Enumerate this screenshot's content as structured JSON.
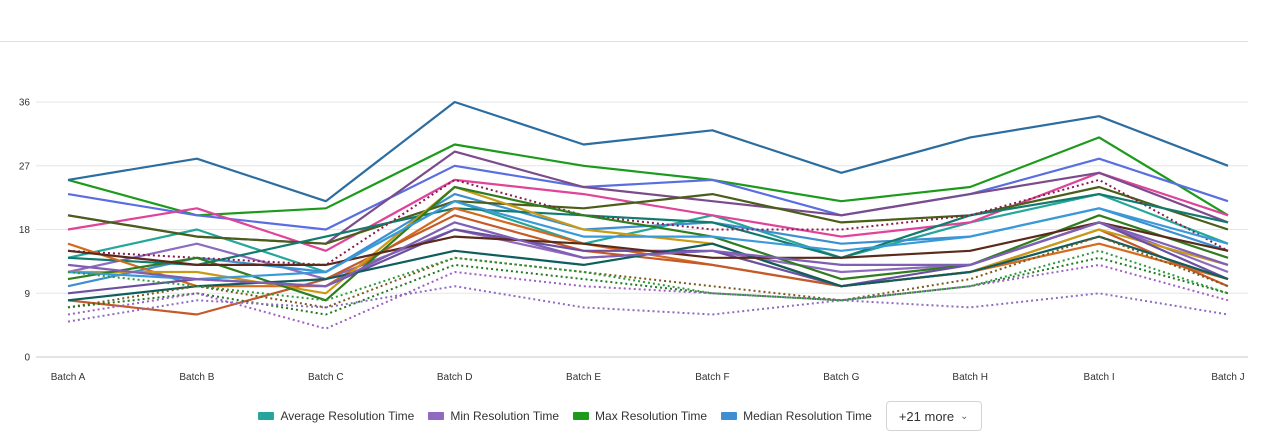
{
  "chart_data": {
    "type": "line",
    "categories": [
      "Batch A",
      "Batch B",
      "Batch C",
      "Batch D",
      "Batch E",
      "Batch F",
      "Batch G",
      "Batch H",
      "Batch I",
      "Batch J"
    ],
    "ylim": [
      0,
      36
    ],
    "yticks": [
      0,
      9,
      18,
      27,
      36
    ],
    "grid": true,
    "legend_position": "bottom",
    "series": [
      {
        "name": "Average Resolution Time",
        "color": "#26a69a",
        "values": [
          14,
          18,
          12,
          22,
          16,
          20,
          14,
          19,
          23,
          16
        ]
      },
      {
        "name": "Min Resolution Time",
        "color": "#8e6bbf",
        "values": [
          12,
          16,
          11,
          18,
          14,
          15,
          12,
          13,
          19,
          12
        ]
      },
      {
        "name": "Max Resolution Time",
        "color": "#1b9a1b",
        "values": [
          25,
          20,
          21,
          30,
          27,
          25,
          22,
          24,
          31,
          20
        ]
      },
      {
        "name": "Median Resolution Time",
        "color": "#3d8fd1",
        "values": [
          10,
          14,
          12,
          23,
          18,
          19,
          16,
          17,
          21,
          15
        ]
      },
      {
        "values": [
          25,
          28,
          22,
          36,
          30,
          32,
          26,
          31,
          34,
          27
        ],
        "color": "#2c6da0"
      },
      {
        "values": [
          23,
          20,
          18,
          27,
          24,
          25,
          20,
          23,
          28,
          22
        ],
        "color": "#5b6ee1"
      },
      {
        "values": [
          18,
          21,
          15,
          25,
          23,
          20,
          17,
          19,
          26,
          20
        ],
        "color": "#e0439a"
      },
      {
        "values": [
          20,
          17,
          16,
          29,
          24,
          22,
          20,
          23,
          26,
          19
        ],
        "color": "#7a4c8c"
      },
      {
        "values": [
          20,
          17,
          16,
          22,
          21,
          23,
          19,
          20,
          24,
          18
        ],
        "color": "#4a5e1a"
      },
      {
        "values": [
          14,
          13,
          17,
          21,
          20,
          19,
          14,
          20,
          23,
          19
        ],
        "color": "#127a6e"
      },
      {
        "values": [
          15,
          14,
          13,
          25,
          20,
          18,
          18,
          20,
          25,
          15
        ],
        "color": "#8b1a4a",
        "dashed": true
      },
      {
        "values": [
          16,
          10,
          10,
          21,
          16,
          13,
          10,
          12,
          16,
          11
        ],
        "color": "#d46a1f"
      },
      {
        "values": [
          8,
          6,
          11,
          20,
          15,
          13,
          10,
          12,
          18,
          10
        ],
        "color": "#c45a2a"
      },
      {
        "values": [
          12,
          12,
          9,
          24,
          18,
          16,
          10,
          12,
          18,
          13
        ],
        "color": "#c99a16"
      },
      {
        "values": [
          11,
          14,
          8,
          24,
          20,
          17,
          11,
          13,
          20,
          14
        ],
        "color": "#2f7d1f"
      },
      {
        "values": [
          9,
          11,
          10,
          18,
          15,
          15,
          10,
          13,
          19,
          11
        ],
        "color": "#6b4fa0"
      },
      {
        "values": [
          8,
          10,
          11,
          15,
          13,
          16,
          10,
          12,
          17,
          11
        ],
        "color": "#0f5d5d"
      },
      {
        "values": [
          15,
          13,
          13,
          17,
          16,
          14,
          14,
          15,
          19,
          15
        ],
        "color": "#5a2a1a"
      },
      {
        "values": [
          12,
          11,
          12,
          22,
          17,
          17,
          15,
          17,
          21,
          16
        ],
        "color": "#3a9ad9"
      },
      {
        "values": [
          13,
          11,
          10,
          19,
          14,
          15,
          13,
          13,
          19,
          13
        ],
        "color": "#7f5fb4"
      },
      {
        "values": [
          7,
          10,
          7,
          14,
          12,
          10,
          8,
          11,
          17,
          10
        ],
        "color": "#7a5a1a",
        "dashed": true
      },
      {
        "values": [
          7,
          9,
          6,
          13,
          11,
          9,
          8,
          10,
          14,
          9
        ],
        "color": "#1f7a1f",
        "dashed": true
      },
      {
        "values": [
          6,
          9,
          4,
          12,
          10,
          9,
          8,
          10,
          13,
          8
        ],
        "color": "#9e5fc4",
        "dashed": true
      },
      {
        "values": [
          5,
          8,
          7,
          10,
          7,
          6,
          8,
          7,
          9,
          6
        ],
        "color": "#8e6bbf",
        "dashed": true
      },
      {
        "values": [
          12,
          10,
          8,
          14,
          12,
          9,
          8,
          10,
          15,
          9
        ],
        "color": "#2a9a3a",
        "dashed": true
      }
    ]
  },
  "legend": {
    "items": [
      {
        "label": "Average Resolution Time",
        "color": "#26a69a"
      },
      {
        "label": "Min Resolution Time",
        "color": "#8e6bbf"
      },
      {
        "label": "Max Resolution Time",
        "color": "#1b9a1b"
      },
      {
        "label": "Median Resolution Time",
        "color": "#3d8fd1"
      }
    ],
    "more_label": "+21 more"
  }
}
